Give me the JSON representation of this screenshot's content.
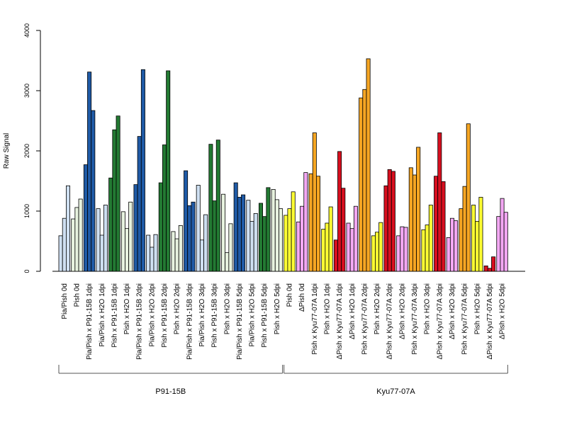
{
  "colors": {
    "pale_blue": "#cfe0f2",
    "dark_blue": "#1f5aa6",
    "pale_green": "#e8f3e0",
    "dark_green": "#237a33",
    "yellow": "#ffff33",
    "pink": "#f4a8f4",
    "orange": "#f6a623",
    "red": "#d80f1f"
  },
  "chart_data": {
    "type": "bar",
    "ylabel": "Raw Signal",
    "ylim": [
      0,
      4000
    ],
    "yticks": [
      0,
      1000,
      2000,
      3000,
      4000
    ],
    "grid": false,
    "groups": [
      {
        "name": "P91-15B",
        "from": 0,
        "to": 17
      },
      {
        "name": "Kyu77-07A",
        "from": 18,
        "to": 35
      }
    ],
    "categories": [
      {
        "label": "Pia/Pish 0d",
        "color": "pale_blue",
        "values": [
          590,
          880,
          1420
        ]
      },
      {
        "label": "Pish 0d",
        "color": "pale_green",
        "values": [
          870,
          1060,
          1200
        ]
      },
      {
        "label": "Pia/Pish x P91-15B 1dpi",
        "color": "dark_blue",
        "values": [
          1770,
          3310,
          2670
        ]
      },
      {
        "label": "Pia/Pish x H2O 1dpi",
        "color": "pale_blue",
        "values": [
          1040,
          600,
          1100
        ]
      },
      {
        "label": "Pish x P91-15B 1dpi",
        "color": "dark_green",
        "values": [
          1550,
          2350,
          2580
        ]
      },
      {
        "label": "Pish x H2O 1dpi",
        "color": "pale_green",
        "values": [
          990,
          710,
          1150
        ]
      },
      {
        "label": "Pia/Pish x P91-15B 2dpi",
        "color": "dark_blue",
        "values": [
          1440,
          2240,
          3350
        ]
      },
      {
        "label": "Pia/Pish x H2O 2dpi",
        "color": "pale_blue",
        "values": [
          600,
          400,
          610
        ]
      },
      {
        "label": "Pish x P91-15B 2dpi",
        "color": "dark_green",
        "values": [
          1470,
          2100,
          3330
        ]
      },
      {
        "label": "Pish x H2O 2dpi",
        "color": "pale_green",
        "values": [
          660,
          540,
          760
        ]
      },
      {
        "label": "Pia/Pish x P91-15B 3dpi",
        "color": "dark_blue",
        "values": [
          1670,
          1090,
          1150
        ]
      },
      {
        "label": "Pia/Pish x H2O 3dpi",
        "color": "pale_blue",
        "values": [
          1430,
          520,
          940
        ]
      },
      {
        "label": "Pish x P91-15B 3dpi",
        "color": "dark_green",
        "values": [
          2110,
          1170,
          2180
        ]
      },
      {
        "label": "Pish x H2O 3dpi",
        "color": "pale_green",
        "values": [
          1280,
          310,
          790
        ]
      },
      {
        "label": "Pia/Pish x P91-15B 5dpi",
        "color": "dark_blue",
        "values": [
          1470,
          1230,
          1270
        ]
      },
      {
        "label": "Pia/Pish x H2O 5dpi",
        "color": "pale_blue",
        "values": [
          1180,
          830,
          960
        ]
      },
      {
        "label": "Pish x P91-15B 5dpi",
        "color": "dark_green",
        "values": [
          1130,
          910,
          1390
        ]
      },
      {
        "label": "Pish x H2O 5dpi",
        "color": "pale_green",
        "values": [
          1360,
          1190,
          1040
        ]
      },
      {
        "label": "Pish 0d",
        "color": "yellow",
        "values": [
          930,
          1040,
          1320
        ]
      },
      {
        "label": "ΔPish 0d",
        "color": "pink",
        "values": [
          820,
          1080,
          1640
        ]
      },
      {
        "label": "Pish x Kyu77-07A 1dpi",
        "color": "orange",
        "values": [
          1620,
          2300,
          1580
        ]
      },
      {
        "label": "Pish x H2O 1dpi",
        "color": "yellow",
        "values": [
          700,
          800,
          1070
        ]
      },
      {
        "label": "ΔPish x Kyu77-07A 1dpi",
        "color": "red",
        "values": [
          520,
          1990,
          1380
        ]
      },
      {
        "label": "ΔPish x H2O 1dpi",
        "color": "pink",
        "values": [
          800,
          710,
          1080
        ]
      },
      {
        "label": "Pish x Kyu77-07A 2dpi",
        "color": "orange",
        "values": [
          2880,
          3020,
          3530
        ]
      },
      {
        "label": "Pish x H2O 2dpi",
        "color": "yellow",
        "values": [
          590,
          650,
          810
        ]
      },
      {
        "label": "ΔPish x Kyu77-07A 2dpi",
        "color": "red",
        "values": [
          1420,
          1690,
          1660
        ]
      },
      {
        "label": "ΔPish x H2O 2dpi",
        "color": "pink",
        "values": [
          590,
          740,
          730
        ]
      },
      {
        "label": "Pish x Kyu77-07A 3dpi",
        "color": "orange",
        "values": [
          1720,
          1600,
          2060
        ]
      },
      {
        "label": "Pish x H2O 3dpi",
        "color": "yellow",
        "values": [
          690,
          770,
          1100
        ]
      },
      {
        "label": "ΔPish x Kyu77-07A 3dpi",
        "color": "red",
        "values": [
          1580,
          2300,
          1490
        ]
      },
      {
        "label": "ΔPish x H2O 3dpi",
        "color": "pink",
        "values": [
          560,
          880,
          840
        ]
      },
      {
        "label": "Pish x Kyu77-07A 5dpi",
        "color": "orange",
        "values": [
          1040,
          1410,
          2450
        ]
      },
      {
        "label": "Pish x H2O 5dpi",
        "color": "yellow",
        "values": [
          1100,
          830,
          1230
        ]
      },
      {
        "label": "ΔPish x Kyu77-07A 5dpi",
        "color": "red",
        "values": [
          90,
          50,
          240
        ]
      },
      {
        "label": "ΔPish x H2O 5dpi",
        "color": "pink",
        "values": [
          910,
          1210,
          980
        ]
      }
    ]
  }
}
